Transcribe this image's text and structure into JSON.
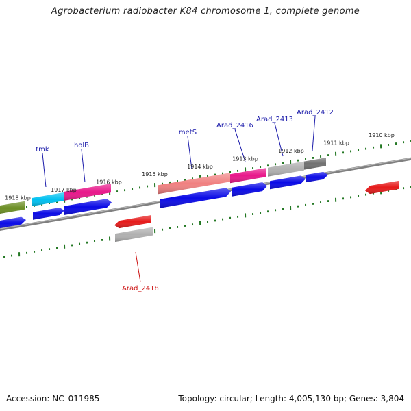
{
  "title": "Agrobacterium radiobacter K84 chromosome 1, complete genome",
  "accession_label": "Accession: NC_011985",
  "summary_label": "Topology: circular; Length: 4,005,130 bp; Genes: 3,804",
  "kbp_labels": [
    "1918 kbp",
    "1917 kbp",
    "1916 kbp",
    "1915 kbp",
    "1914 kbp",
    "1913 kbp",
    "1912 kbp",
    "1911 kbp",
    "1910 kbp"
  ],
  "gene_labels": [
    {
      "name": "tmk",
      "color": "#1a1aaa"
    },
    {
      "name": "holB",
      "color": "#1a1aaa"
    },
    {
      "name": "metS",
      "color": "#1a1aaa"
    },
    {
      "name": "Arad_2416",
      "color": "#1a1aaa"
    },
    {
      "name": "Arad_2413",
      "color": "#1a1aaa"
    },
    {
      "name": "Arad_2412",
      "color": "#1a1aaa"
    },
    {
      "name": "Arad_2418",
      "color": "#cc1111"
    }
  ],
  "colors": {
    "backbone": "#808080",
    "tick": "#227722",
    "cds_forward": "#0a0ae6",
    "cds_reverse": "#e61a1a",
    "gene_green": "#6b8e23",
    "gene_cyan": "#00c0f0",
    "gene_magenta": "#e8178a",
    "gene_salmon": "#f08080",
    "gene_silver": "#b0b0b0",
    "gene_gray": "#707070"
  }
}
